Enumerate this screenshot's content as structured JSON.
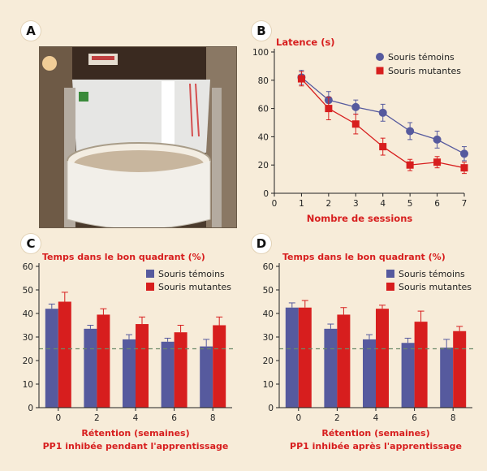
{
  "panels": {
    "a": {
      "letter": "A"
    },
    "b": {
      "letter": "B"
    },
    "c": {
      "letter": "C"
    },
    "d": {
      "letter": "D"
    }
  },
  "colors": {
    "background": "#f7ecd9",
    "control": "#565a9e",
    "mutant": "#d71e1e",
    "title_red": "#d71e1e",
    "reference_line": "#6d8a6a"
  },
  "chart_data": [
    {
      "id": "B",
      "type": "line",
      "title": "Latence (s)",
      "xlabel": "Nombre de sessions",
      "ylabel": "",
      "x_ticks": [
        "0",
        "1",
        "2",
        "3",
        "4",
        "5",
        "6",
        "7"
      ],
      "y_ticks": [
        "0",
        "20",
        "40",
        "60",
        "80",
        "100"
      ],
      "xlim": [
        0,
        7
      ],
      "ylim": [
        0,
        100
      ],
      "legend": "top-right",
      "x": [
        1,
        2,
        3,
        4,
        5,
        6,
        7
      ],
      "series": [
        {
          "name": "Souris témoins",
          "marker": "circle",
          "color": "#565a9e",
          "values": [
            82,
            66,
            61,
            57,
            44,
            38,
            28
          ],
          "errors": [
            5,
            6,
            5,
            6,
            6,
            6,
            5
          ]
        },
        {
          "name": "Souris mutantes",
          "marker": "square",
          "color": "#d71e1e",
          "values": [
            81,
            60,
            49,
            33,
            20,
            22,
            18
          ],
          "errors": [
            5,
            8,
            7,
            6,
            4,
            4,
            4
          ]
        }
      ]
    },
    {
      "id": "C",
      "type": "bar",
      "title": "Temps dans le bon quadrant (%)",
      "xlabel": "Rétention (semaines)",
      "subtitle": "PP1 inhibée pendant l'apprentissage",
      "categories": [
        "0",
        "2",
        "4",
        "6",
        "8"
      ],
      "y_ticks": [
        "0",
        "10",
        "20",
        "30",
        "40",
        "50",
        "60"
      ],
      "ylim": [
        0,
        60
      ],
      "reference": 25,
      "legend": "top-right",
      "series": [
        {
          "name": "Souris témoins",
          "color": "#565a9e",
          "values": [
            42,
            33.5,
            29,
            28,
            26
          ],
          "errors": [
            2,
            1.5,
            2,
            1.5,
            3
          ]
        },
        {
          "name": "Souris mutantes",
          "color": "#d71e1e",
          "values": [
            45,
            39.5,
            35.5,
            32,
            35
          ],
          "errors": [
            4,
            2.5,
            3,
            3,
            3.5
          ]
        }
      ]
    },
    {
      "id": "D",
      "type": "bar",
      "title": "Temps dans le bon quadrant (%)",
      "xlabel": "Rétention (semaines)",
      "subtitle": "PP1 inhibée après l'apprentissage",
      "categories": [
        "0",
        "2",
        "4",
        "6",
        "8"
      ],
      "y_ticks": [
        "0",
        "10",
        "20",
        "30",
        "40",
        "50",
        "60"
      ],
      "ylim": [
        0,
        60
      ],
      "reference": 25,
      "legend": "top-right",
      "series": [
        {
          "name": "Souris témoins",
          "color": "#565a9e",
          "values": [
            42.5,
            33.5,
            29,
            27.5,
            25.5
          ],
          "errors": [
            2,
            2,
            2,
            2,
            3.5
          ]
        },
        {
          "name": "Souris mutantes",
          "color": "#d71e1e",
          "values": [
            42.5,
            39.5,
            42,
            36.5,
            32.5
          ],
          "errors": [
            3,
            3,
            1.5,
            4.5,
            2
          ]
        }
      ]
    }
  ]
}
